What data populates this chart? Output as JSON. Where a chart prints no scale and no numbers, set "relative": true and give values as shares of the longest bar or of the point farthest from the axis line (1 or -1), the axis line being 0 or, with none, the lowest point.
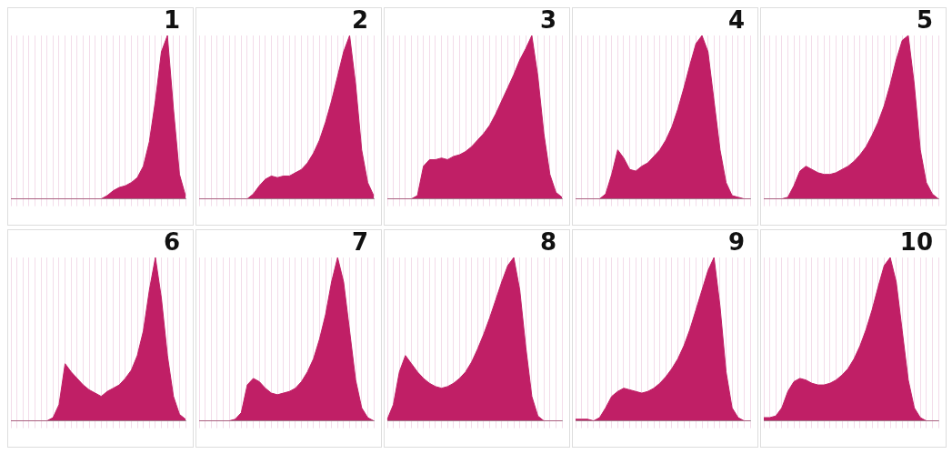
{
  "chart_data": [
    {
      "type": "area",
      "title": "1",
      "relative": true,
      "grid": "x",
      "color": "#c01f66",
      "categories": [
        null,
        null,
        null,
        null,
        null,
        null,
        null,
        null,
        null,
        null,
        null,
        null,
        null,
        null,
        null,
        null,
        null,
        null,
        null,
        null,
        null,
        null,
        null,
        null,
        null,
        null,
        null,
        null,
        null,
        null
      ],
      "values": [
        0,
        0,
        0,
        0,
        0,
        0,
        0,
        0,
        0,
        0,
        0,
        0,
        0,
        0,
        0,
        0,
        0.02,
        0.05,
        0.07,
        0.08,
        0.1,
        0.13,
        0.2,
        0.35,
        0.6,
        0.9,
        1,
        0.55,
        0.15,
        0.02
      ]
    },
    {
      "type": "area",
      "title": "2",
      "relative": true,
      "grid": "x",
      "color": "#c01f66",
      "categories": [
        null,
        null,
        null,
        null,
        null,
        null,
        null,
        null,
        null,
        null,
        null,
        null,
        null,
        null,
        null,
        null,
        null,
        null,
        null,
        null,
        null,
        null,
        null,
        null,
        null,
        null,
        null,
        null,
        null,
        null
      ],
      "values": [
        0,
        0,
        0,
        0,
        0,
        0,
        0,
        0,
        0,
        0.03,
        0.08,
        0.12,
        0.14,
        0.13,
        0.14,
        0.14,
        0.16,
        0.18,
        0.22,
        0.28,
        0.36,
        0.47,
        0.6,
        0.75,
        0.9,
        1,
        0.7,
        0.3,
        0.1,
        0.02
      ]
    },
    {
      "type": "area",
      "title": "3",
      "relative": true,
      "grid": "x",
      "color": "#c01f66",
      "categories": [
        null,
        null,
        null,
        null,
        null,
        null,
        null,
        null,
        null,
        null,
        null,
        null,
        null,
        null,
        null,
        null,
        null,
        null,
        null,
        null,
        null,
        null,
        null,
        null,
        null,
        null,
        null,
        null,
        null,
        null
      ],
      "values": [
        0,
        0,
        0,
        0,
        0,
        0.02,
        0.2,
        0.24,
        0.24,
        0.25,
        0.24,
        0.26,
        0.27,
        0.29,
        0.32,
        0.36,
        0.4,
        0.45,
        0.52,
        0.6,
        0.68,
        0.76,
        0.85,
        0.92,
        1,
        0.75,
        0.4,
        0.15,
        0.04,
        0.01
      ]
    },
    {
      "type": "area",
      "title": "4",
      "relative": true,
      "grid": "x",
      "color": "#c01f66",
      "categories": [
        null,
        null,
        null,
        null,
        null,
        null,
        null,
        null,
        null,
        null,
        null,
        null,
        null,
        null,
        null,
        null,
        null,
        null,
        null,
        null,
        null,
        null,
        null,
        null,
        null,
        null,
        null,
        null,
        null,
        null
      ],
      "values": [
        0,
        0,
        0,
        0,
        0,
        0.03,
        0.15,
        0.3,
        0.25,
        0.18,
        0.17,
        0.2,
        0.22,
        0.26,
        0.3,
        0.36,
        0.44,
        0.55,
        0.68,
        0.82,
        0.95,
        1,
        0.9,
        0.6,
        0.3,
        0.1,
        0.02,
        0.01,
        0,
        0
      ]
    },
    {
      "type": "area",
      "title": "5",
      "relative": true,
      "grid": "x",
      "color": "#c01f66",
      "categories": [
        null,
        null,
        null,
        null,
        null,
        null,
        null,
        null,
        null,
        null,
        null,
        null,
        null,
        null,
        null,
        null,
        null,
        null,
        null,
        null,
        null,
        null,
        null,
        null,
        null,
        null,
        null,
        null,
        null,
        null
      ],
      "values": [
        0,
        0,
        0,
        0,
        0.01,
        0.08,
        0.17,
        0.2,
        0.18,
        0.16,
        0.15,
        0.15,
        0.16,
        0.18,
        0.2,
        0.23,
        0.27,
        0.32,
        0.39,
        0.47,
        0.57,
        0.7,
        0.85,
        0.97,
        1,
        0.7,
        0.3,
        0.1,
        0.03,
        0
      ]
    },
    {
      "type": "area",
      "title": "6",
      "relative": true,
      "grid": "x",
      "color": "#c01f66",
      "categories": [
        null,
        null,
        null,
        null,
        null,
        null,
        null,
        null,
        null,
        null,
        null,
        null,
        null,
        null,
        null,
        null,
        null,
        null,
        null,
        null,
        null,
        null,
        null,
        null,
        null,
        null,
        null,
        null,
        null,
        null
      ],
      "values": [
        0,
        0,
        0,
        0,
        0,
        0,
        0,
        0.02,
        0.1,
        0.35,
        0.3,
        0.26,
        0.22,
        0.19,
        0.17,
        0.15,
        0.18,
        0.2,
        0.22,
        0.26,
        0.31,
        0.4,
        0.55,
        0.8,
        1,
        0.75,
        0.4,
        0.15,
        0.04,
        0.01
      ]
    },
    {
      "type": "area",
      "title": "7",
      "relative": true,
      "grid": "x",
      "color": "#c01f66",
      "categories": [
        null,
        null,
        null,
        null,
        null,
        null,
        null,
        null,
        null,
        null,
        null,
        null,
        null,
        null,
        null,
        null,
        null,
        null,
        null,
        null,
        null,
        null,
        null,
        null,
        null,
        null,
        null,
        null,
        null,
        null
      ],
      "values": [
        0,
        0,
        0,
        0,
        0,
        0,
        0.01,
        0.05,
        0.22,
        0.26,
        0.24,
        0.2,
        0.17,
        0.16,
        0.17,
        0.18,
        0.2,
        0.24,
        0.3,
        0.38,
        0.5,
        0.65,
        0.85,
        1,
        0.85,
        0.55,
        0.25,
        0.08,
        0.02,
        0
      ]
    },
    {
      "type": "area",
      "title": "8",
      "relative": true,
      "grid": "x",
      "color": "#c01f66",
      "categories": [
        null,
        null,
        null,
        null,
        null,
        null,
        null,
        null,
        null,
        null,
        null,
        null,
        null,
        null,
        null,
        null,
        null,
        null,
        null,
        null,
        null,
        null,
        null,
        null,
        null,
        null,
        null,
        null,
        null,
        null
      ],
      "values": [
        0.01,
        0.1,
        0.3,
        0.4,
        0.35,
        0.3,
        0.26,
        0.23,
        0.21,
        0.2,
        0.21,
        0.23,
        0.26,
        0.3,
        0.36,
        0.44,
        0.53,
        0.63,
        0.74,
        0.85,
        0.95,
        1,
        0.8,
        0.45,
        0.15,
        0.03,
        0,
        0,
        0,
        0
      ]
    },
    {
      "type": "area",
      "title": "9",
      "relative": true,
      "grid": "x",
      "color": "#c01f66",
      "categories": [
        null,
        null,
        null,
        null,
        null,
        null,
        null,
        null,
        null,
        null,
        null,
        null,
        null,
        null,
        null,
        null,
        null,
        null,
        null,
        null,
        null,
        null,
        null,
        null,
        null,
        null,
        null,
        null,
        null,
        null
      ],
      "values": [
        0.01,
        0.01,
        0.01,
        0,
        0.02,
        0.08,
        0.15,
        0.18,
        0.2,
        0.19,
        0.18,
        0.17,
        0.18,
        0.2,
        0.23,
        0.27,
        0.32,
        0.38,
        0.46,
        0.56,
        0.68,
        0.8,
        0.92,
        1,
        0.7,
        0.3,
        0.08,
        0.02,
        0,
        0
      ]
    },
    {
      "type": "area",
      "title": "10",
      "relative": true,
      "grid": "x",
      "color": "#c01f66",
      "categories": [
        null,
        null,
        null,
        null,
        null,
        null,
        null,
        null,
        null,
        null,
        null,
        null,
        null,
        null,
        null,
        null,
        null,
        null,
        null,
        null,
        null,
        null,
        null,
        null,
        null,
        null,
        null,
        null,
        null,
        null
      ],
      "values": [
        0.02,
        0.02,
        0.03,
        0.08,
        0.18,
        0.24,
        0.26,
        0.25,
        0.23,
        0.22,
        0.22,
        0.23,
        0.25,
        0.28,
        0.32,
        0.38,
        0.46,
        0.56,
        0.68,
        0.82,
        0.95,
        1,
        0.85,
        0.55,
        0.25,
        0.08,
        0.02,
        0,
        0,
        0
      ]
    }
  ]
}
